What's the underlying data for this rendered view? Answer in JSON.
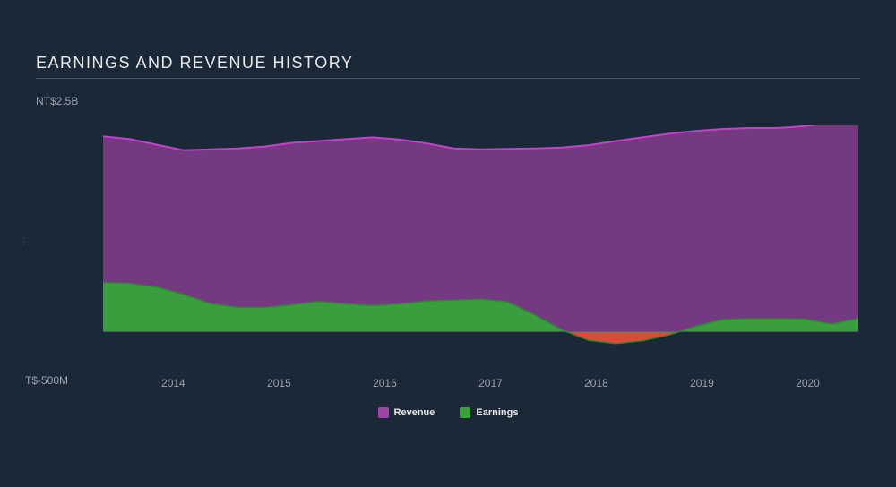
{
  "chart": {
    "type": "area",
    "title": "EARNINGS AND REVENUE HISTORY",
    "title_fontsize": 18,
    "title_color": "#e8e8ea",
    "background_color": "#1b2838",
    "plot_background_color": "#1b2838",
    "y_axis": {
      "top_label": "NT$2.5B",
      "bottom_label": "T$-500M",
      "top_value": 2500,
      "bottom_value": -500,
      "zero_line_color": "#555f6e",
      "label_color": "#9ca3af",
      "label_fontsize": 12
    },
    "x_axis": {
      "labels": [
        "2014",
        "2015",
        "2016",
        "2017",
        "2018",
        "2019",
        "2020"
      ],
      "positions_pct": [
        9.3,
        23.3,
        37.3,
        51.3,
        65.3,
        79.3,
        93.3
      ],
      "range_start": 2013.33,
      "range_end": 2020.48,
      "label_color": "#9ca3af",
      "label_fontsize": 12
    },
    "series": {
      "revenue": {
        "label": "Revenue",
        "color_fill": "#7c3b88",
        "color_line": "#c243c9",
        "line_width": 2,
        "values": [
          2110,
          2080,
          2020,
          1960,
          1970,
          1980,
          2000,
          2040,
          2060,
          2080,
          2100,
          2075,
          2035,
          1980,
          1970,
          1975,
          1980,
          1990,
          2015,
          2060,
          2100,
          2140,
          2170,
          2190,
          2200,
          2200,
          2220,
          2260,
          2310
        ]
      },
      "earnings": {
        "label": "Earnings",
        "color_positive_fill": "#37a33a",
        "color_negative_fill": "#e74c3c",
        "color_line_positive": "#2d8a30",
        "color_line_negative": "#c0392b",
        "line_width": 1.5,
        "values": [
          530,
          520,
          480,
          400,
          300,
          260,
          260,
          290,
          325,
          300,
          280,
          300,
          330,
          340,
          350,
          320,
          180,
          20,
          -95,
          -130,
          -100,
          -35,
          60,
          130,
          140,
          140,
          135,
          80,
          140
        ]
      }
    },
    "legend": {
      "items": [
        {
          "label": "Revenue",
          "color": "#a044a8"
        },
        {
          "label": "Earnings",
          "color": "#37a33a"
        }
      ],
      "font_color": "#e8e8ea",
      "fontsize": 11
    }
  }
}
